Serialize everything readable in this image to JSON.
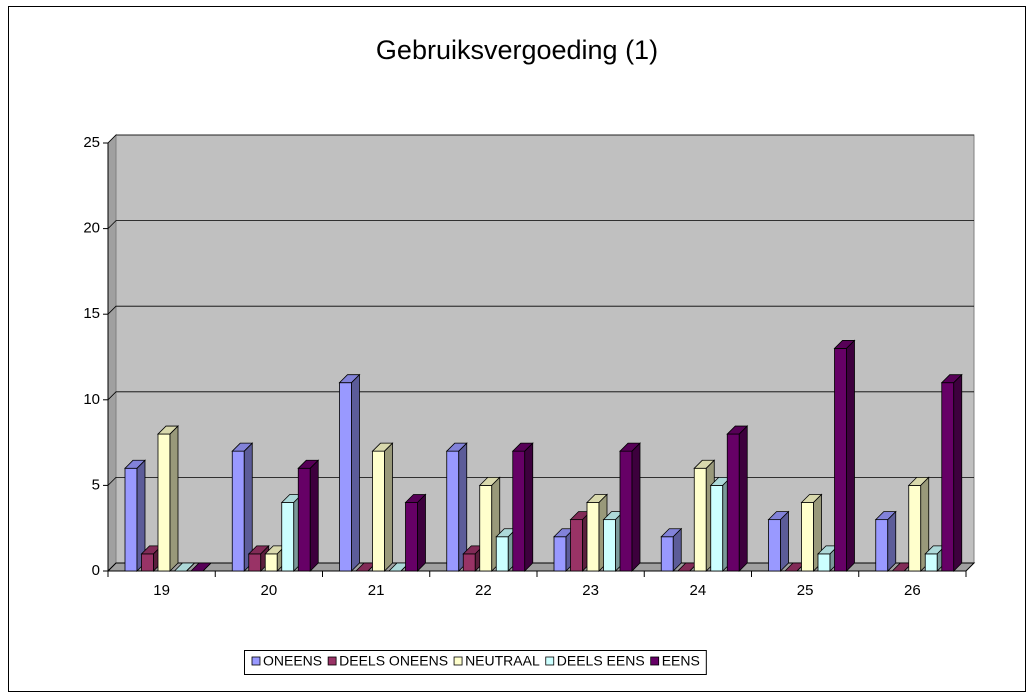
{
  "chart_data": {
    "type": "bar3d",
    "title": "Gebruiksvergoeding (1)",
    "categories": [
      "19",
      "20",
      "21",
      "22",
      "23",
      "24",
      "25",
      "26"
    ],
    "series": [
      {
        "name": "ONEENS",
        "color": "#9999FF",
        "values": [
          6,
          7,
          11,
          7,
          2,
          2,
          3,
          3
        ]
      },
      {
        "name": "DEELS ONEENS",
        "color": "#993366",
        "values": [
          1,
          1,
          0,
          1,
          3,
          0,
          0,
          0
        ]
      },
      {
        "name": "NEUTRAAL",
        "color": "#FFFFCC",
        "values": [
          8,
          1,
          7,
          5,
          4,
          6,
          4,
          5
        ]
      },
      {
        "name": "DEELS EENS",
        "color": "#CCFFFF",
        "values": [
          0,
          4,
          0,
          2,
          3,
          5,
          1,
          1
        ]
      },
      {
        "name": "EENS",
        "color": "#660066",
        "values": [
          0,
          6,
          4,
          7,
          7,
          8,
          13,
          11
        ]
      }
    ],
    "ylim": [
      0,
      25
    ],
    "yticks": [
      0,
      5,
      10,
      15,
      20,
      25
    ],
    "grid": true,
    "legend": "bottom"
  }
}
